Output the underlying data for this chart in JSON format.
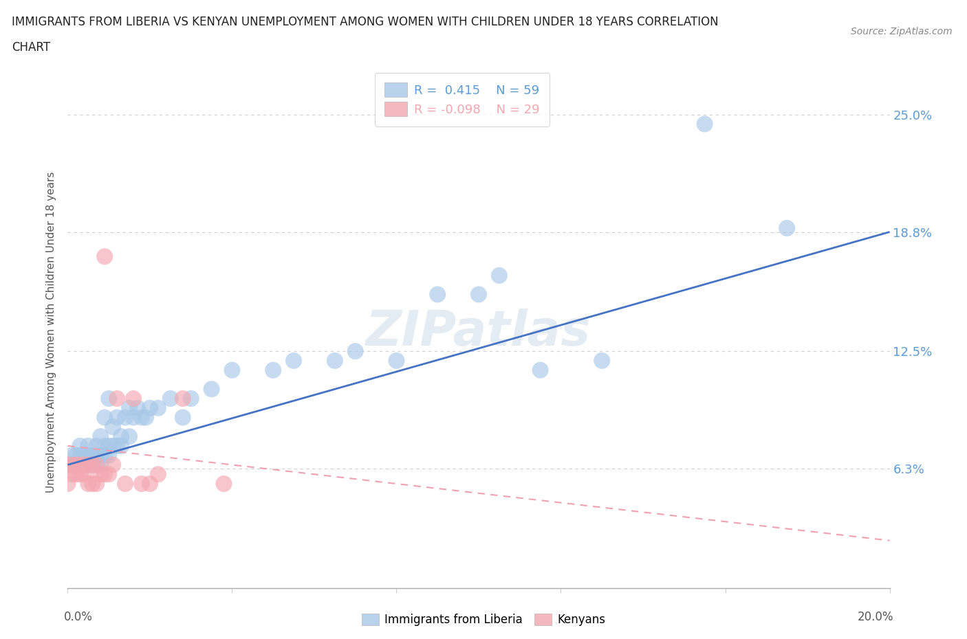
{
  "title_line1": "IMMIGRANTS FROM LIBERIA VS KENYAN UNEMPLOYMENT AMONG WOMEN WITH CHILDREN UNDER 18 YEARS CORRELATION",
  "title_line2": "CHART",
  "source": "Source: ZipAtlas.com",
  "ylabel_ticks": [
    0.0,
    0.063,
    0.125,
    0.188,
    0.25
  ],
  "ylabel_labels": [
    "",
    "6.3%",
    "12.5%",
    "18.8%",
    "25.0%"
  ],
  "xlim": [
    0.0,
    0.2
  ],
  "ylim": [
    0.0,
    0.27
  ],
  "color_blue": "#a8c8e8",
  "color_pink": "#f4a7b0",
  "color_blue_line": "#4472c4",
  "color_pink_line": "#f0a0b0",
  "color_blue_text": "#5b9bd5",
  "color_pink_text": "#f4a7b0",
  "color_grid": "#d0d0d0",
  "blue_scatter_x": [
    0.0,
    0.001,
    0.001,
    0.002,
    0.002,
    0.003,
    0.003,
    0.003,
    0.004,
    0.004,
    0.005,
    0.005,
    0.005,
    0.006,
    0.006,
    0.007,
    0.007,
    0.007,
    0.008,
    0.008,
    0.008,
    0.009,
    0.009,
    0.009,
    0.01,
    0.01,
    0.01,
    0.011,
    0.011,
    0.012,
    0.012,
    0.013,
    0.013,
    0.014,
    0.015,
    0.015,
    0.016,
    0.017,
    0.018,
    0.019,
    0.02,
    0.022,
    0.025,
    0.028,
    0.03,
    0.035,
    0.04,
    0.05,
    0.055,
    0.065,
    0.07,
    0.08,
    0.09,
    0.1,
    0.105,
    0.115,
    0.13,
    0.155,
    0.175
  ],
  "blue_scatter_y": [
    0.065,
    0.065,
    0.07,
    0.065,
    0.07,
    0.065,
    0.07,
    0.075,
    0.065,
    0.07,
    0.065,
    0.07,
    0.075,
    0.07,
    0.065,
    0.07,
    0.075,
    0.065,
    0.065,
    0.07,
    0.08,
    0.07,
    0.075,
    0.09,
    0.07,
    0.075,
    0.1,
    0.075,
    0.085,
    0.075,
    0.09,
    0.075,
    0.08,
    0.09,
    0.08,
    0.095,
    0.09,
    0.095,
    0.09,
    0.09,
    0.095,
    0.095,
    0.1,
    0.09,
    0.1,
    0.105,
    0.115,
    0.115,
    0.12,
    0.12,
    0.125,
    0.12,
    0.155,
    0.155,
    0.165,
    0.115,
    0.12,
    0.245,
    0.19
  ],
  "pink_scatter_x": [
    0.0,
    0.0,
    0.001,
    0.001,
    0.002,
    0.002,
    0.003,
    0.003,
    0.004,
    0.004,
    0.005,
    0.005,
    0.006,
    0.006,
    0.007,
    0.007,
    0.008,
    0.009,
    0.009,
    0.01,
    0.011,
    0.012,
    0.014,
    0.016,
    0.018,
    0.02,
    0.022,
    0.028,
    0.038
  ],
  "pink_scatter_y": [
    0.065,
    0.055,
    0.06,
    0.065,
    0.06,
    0.065,
    0.06,
    0.065,
    0.06,
    0.065,
    0.065,
    0.055,
    0.065,
    0.055,
    0.065,
    0.055,
    0.06,
    0.175,
    0.06,
    0.06,
    0.065,
    0.1,
    0.055,
    0.1,
    0.055,
    0.055,
    0.06,
    0.1,
    0.055
  ],
  "blue_trend_x": [
    0.0,
    0.2
  ],
  "blue_trend_y_start": 0.065,
  "blue_trend_y_end": 0.188,
  "pink_trend_x": [
    0.0,
    0.2
  ],
  "pink_trend_y_start": 0.075,
  "pink_trend_y_end": 0.025,
  "legend_label1": "R =  0.415    N = 59",
  "legend_label2": "R = -0.098    N = 29"
}
